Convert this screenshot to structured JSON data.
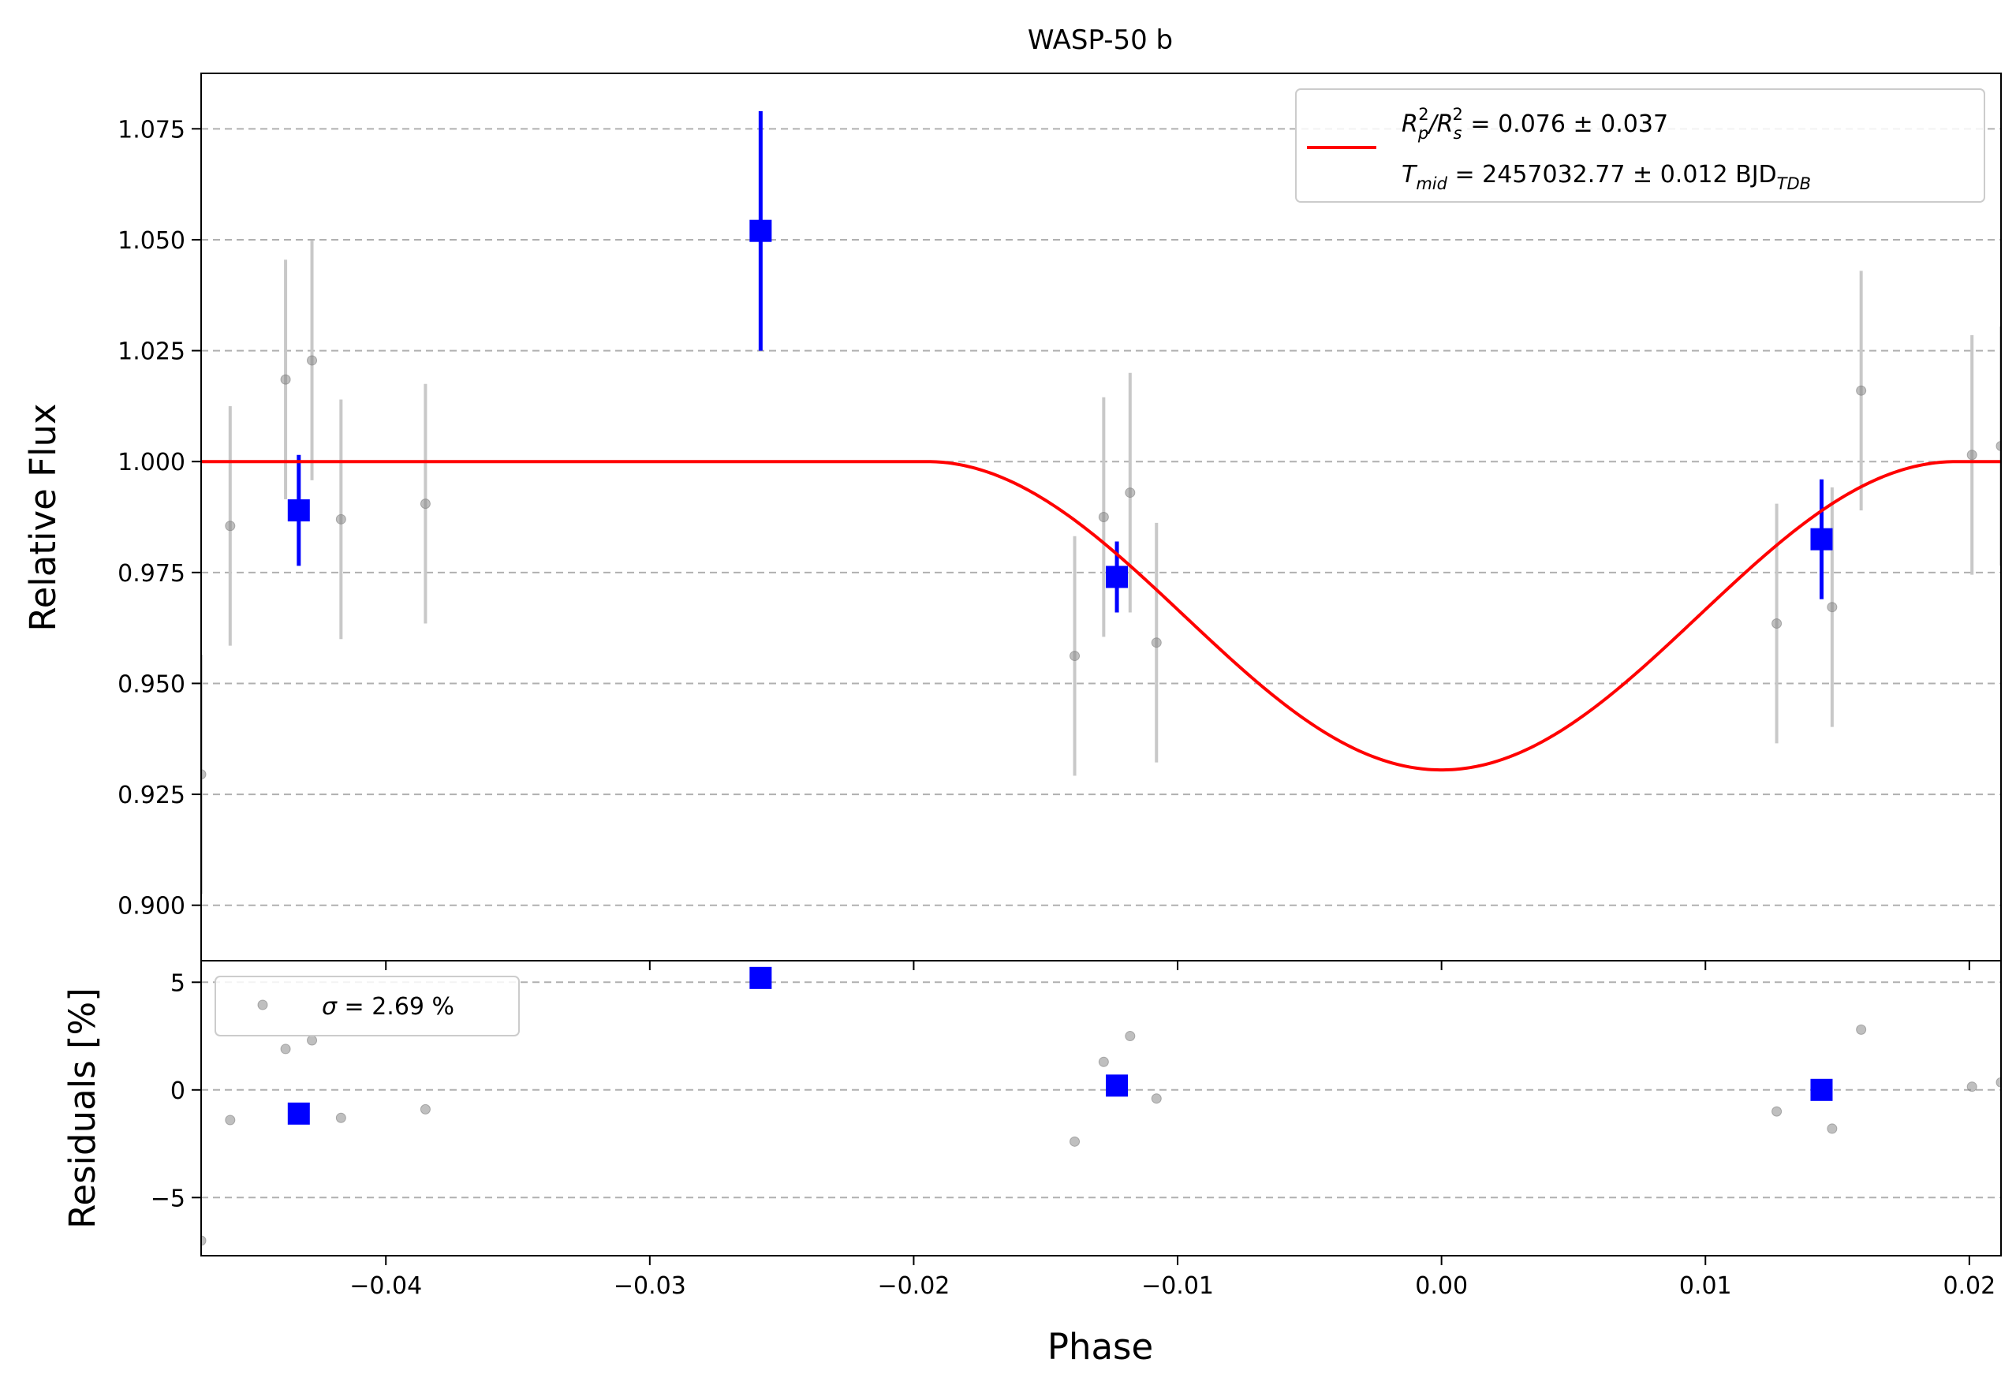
{
  "chart_data": {
    "type": "scatter",
    "title": "WASP-50 b",
    "xlabel": "Phase",
    "xlim": [
      -0.047,
      0.0212
    ],
    "xticks": [
      -0.04,
      -0.03,
      -0.02,
      -0.01,
      0.0,
      0.01,
      0.02
    ],
    "xtick_labels": [
      "−0.04",
      "−0.03",
      "−0.02",
      "−0.01",
      "0.00",
      "0.01",
      "0.02"
    ],
    "top_panel": {
      "ylabel": "Relative Flux",
      "ylim": [
        0.8875,
        1.0875
      ],
      "yticks": [
        0.9,
        0.925,
        0.95,
        0.975,
        1.0,
        1.025,
        1.05,
        1.075
      ],
      "ytick_labels": [
        "0.900",
        "0.925",
        "0.950",
        "0.975",
        "1.000",
        "1.025",
        "1.050",
        "1.075"
      ],
      "grid": "y-dashed",
      "legend_position": "top-right",
      "model": {
        "color": "#ff0000",
        "legend_line1": "Rₚ²/Rₛ² = 0.076 ± 0.037",
        "legend_line1_parts": [
          "R",
          "p",
          "2",
          "/R",
          "s",
          "2",
          " = 0.076 ± 0.037"
        ],
        "legend_line2_parts": [
          "T",
          "mid",
          " = 2457032.77 ± 0.012 BJD",
          "TDB"
        ],
        "transit": {
          "t_mid": 0.0,
          "half_duration": 0.0195,
          "depth": 0.0695
        }
      },
      "raw_points": {
        "color": "#808080",
        "errorbar_color": "#c8c8c8",
        "x": [
          -0.047,
          -0.0459,
          -0.0438,
          -0.0428,
          -0.0417,
          -0.0385,
          -0.0139,
          -0.0128,
          -0.0118,
          -0.0108,
          0.0127,
          0.0148,
          0.0159,
          0.0201,
          0.0212
        ],
        "y": [
          0.9295,
          0.9855,
          1.0185,
          1.0228,
          0.987,
          0.9905,
          0.9562,
          0.9875,
          0.993,
          0.9592,
          0.9635,
          0.9672,
          1.016,
          1.0015,
          1.0035
        ],
        "yerr": [
          0.027,
          0.027,
          0.027,
          0.027,
          0.027,
          0.027,
          0.027,
          0.027,
          0.027,
          0.027,
          0.027,
          0.027,
          0.027,
          0.027,
          0.027
        ]
      },
      "binned_points": {
        "color": "#0000ff",
        "x": [
          -0.0433,
          -0.0258,
          -0.0123,
          0.0144
        ],
        "y": [
          0.989,
          1.052,
          0.974,
          0.9825
        ],
        "yerr": [
          0.0125,
          0.027,
          0.008,
          0.0135
        ]
      }
    },
    "bottom_panel": {
      "ylabel": "Residuals [%]",
      "ylim": [
        -7.7,
        6.0
      ],
      "yticks": [
        -5,
        0,
        5
      ],
      "ytick_labels": [
        "−5",
        "0",
        "5"
      ],
      "grid": "y-dashed",
      "legend_position": "top-left",
      "legend_parts": [
        "σ",
        " = 2.69 %"
      ],
      "raw_residuals": {
        "x": [
          -0.047,
          -0.0459,
          -0.0438,
          -0.0428,
          -0.0417,
          -0.0385,
          -0.0139,
          -0.0128,
          -0.0118,
          -0.0108,
          0.0127,
          0.0148,
          0.0159,
          0.0201,
          0.0212
        ],
        "y": [
          -7.0,
          -1.4,
          1.9,
          2.3,
          -1.3,
          -0.9,
          -2.4,
          1.3,
          2.5,
          -0.4,
          -1.0,
          -1.8,
          2.8,
          0.15,
          0.35
        ]
      },
      "binned_residuals": {
        "x": [
          -0.0433,
          -0.0258,
          -0.0123,
          0.0144
        ],
        "y": [
          -1.1,
          5.2,
          0.2,
          0.0
        ]
      }
    }
  }
}
